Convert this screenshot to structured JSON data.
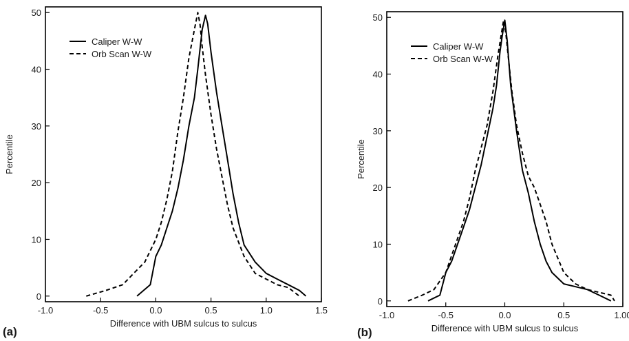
{
  "chart_data": [
    {
      "type": "line",
      "panel_label": "(a)",
      "xlabel": "Difference with UBM sulcus to sulcus",
      "ylabel": "Percentile",
      "xlim": [
        -1.0,
        1.5
      ],
      "ylim": [
        -1,
        51
      ],
      "xticks": [
        -1.0,
        -0.5,
        0.0,
        0.5,
        1.0,
        1.5
      ],
      "xtick_labels": [
        "-1.0",
        "-0.5",
        "0.0",
        "0.5",
        "1.0",
        "1.5"
      ],
      "yticks": [
        0,
        10,
        20,
        30,
        40,
        50
      ],
      "ytick_labels": [
        "0",
        "10",
        "20",
        "30",
        "40",
        "50"
      ],
      "grid": false,
      "legend_position": "top-left",
      "series": [
        {
          "name": "Caliper W-W",
          "style": "solid",
          "color": "#000000",
          "x": [
            -0.17,
            -0.05,
            -0.02,
            0.0,
            0.05,
            0.1,
            0.15,
            0.2,
            0.25,
            0.3,
            0.35,
            0.38,
            0.42,
            0.45,
            0.47,
            0.5,
            0.55,
            0.6,
            0.65,
            0.7,
            0.75,
            0.8,
            0.9,
            1.0,
            1.1,
            1.2,
            1.3,
            1.36
          ],
          "y": [
            0,
            2,
            5,
            7,
            9,
            12,
            15,
            19,
            24,
            30,
            35,
            40,
            47,
            49.5,
            48,
            43,
            36,
            30,
            24,
            18,
            13,
            9,
            6,
            4,
            3,
            2,
            1,
            0
          ]
        },
        {
          "name": "Orb Scan W-W",
          "style": "dashed",
          "color": "#000000",
          "x": [
            -0.63,
            -0.45,
            -0.3,
            -0.2,
            -0.1,
            -0.05,
            0.0,
            0.05,
            0.1,
            0.15,
            0.2,
            0.25,
            0.3,
            0.35,
            0.38,
            0.4,
            0.42,
            0.45,
            0.5,
            0.55,
            0.6,
            0.65,
            0.7,
            0.8,
            0.9,
            1.0,
            1.1,
            1.2,
            1.3
          ],
          "y": [
            0,
            1,
            2,
            4,
            6,
            8,
            10,
            13,
            17,
            22,
            29,
            35,
            42,
            47,
            50,
            48,
            44,
            39,
            32,
            26,
            21,
            16,
            12,
            7,
            4,
            3,
            2,
            1.5,
            0
          ]
        }
      ]
    },
    {
      "type": "line",
      "panel_label": "(b)",
      "xlabel": "Difference with UBM sulcus to sulcus",
      "ylabel": "Percentile",
      "xlim": [
        -1.0,
        1.0
      ],
      "ylim": [
        -1,
        51
      ],
      "xticks": [
        -1.0,
        -0.5,
        0.0,
        0.5,
        1.0
      ],
      "xtick_labels": [
        "-1.0",
        "-0.5",
        "0.0",
        "0.5",
        "1.00"
      ],
      "yticks": [
        0,
        10,
        20,
        30,
        40,
        50
      ],
      "ytick_labels": [
        "0",
        "10",
        "20",
        "30",
        "40",
        "50"
      ],
      "grid": false,
      "legend_position": "top-left",
      "series": [
        {
          "name": "Caliper W-W",
          "style": "solid",
          "color": "#000000",
          "x": [
            -0.65,
            -0.55,
            -0.5,
            -0.45,
            -0.4,
            -0.35,
            -0.3,
            -0.25,
            -0.2,
            -0.15,
            -0.1,
            -0.07,
            -0.04,
            -0.02,
            0.0,
            0.02,
            0.05,
            0.1,
            0.15,
            0.2,
            0.25,
            0.3,
            0.35,
            0.4,
            0.5,
            0.6,
            0.7,
            0.8,
            0.9
          ],
          "y": [
            0,
            1,
            5,
            7,
            10,
            13,
            16,
            20,
            24,
            29,
            34,
            38,
            44,
            47,
            49.5,
            46,
            38,
            30,
            23,
            19,
            14,
            10,
            7,
            5,
            3,
            2.5,
            2,
            1,
            0
          ]
        },
        {
          "name": "Orb Scan W-W",
          "style": "dashed",
          "color": "#000000",
          "x": [
            -0.82,
            -0.7,
            -0.6,
            -0.5,
            -0.45,
            -0.4,
            -0.35,
            -0.3,
            -0.25,
            -0.2,
            -0.15,
            -0.1,
            -0.06,
            -0.03,
            -0.01,
            0.01,
            0.03,
            0.06,
            0.1,
            0.15,
            0.2,
            0.25,
            0.3,
            0.35,
            0.4,
            0.5,
            0.6,
            0.7,
            0.8,
            0.9,
            0.93
          ],
          "y": [
            0,
            1,
            2,
            5,
            8,
            11,
            14,
            18,
            23,
            27,
            31,
            37,
            43,
            47,
            49.5,
            47,
            43,
            37,
            31,
            26,
            22,
            20,
            17,
            14,
            10,
            5,
            3,
            2,
            1.5,
            1,
            0
          ]
        }
      ]
    }
  ]
}
